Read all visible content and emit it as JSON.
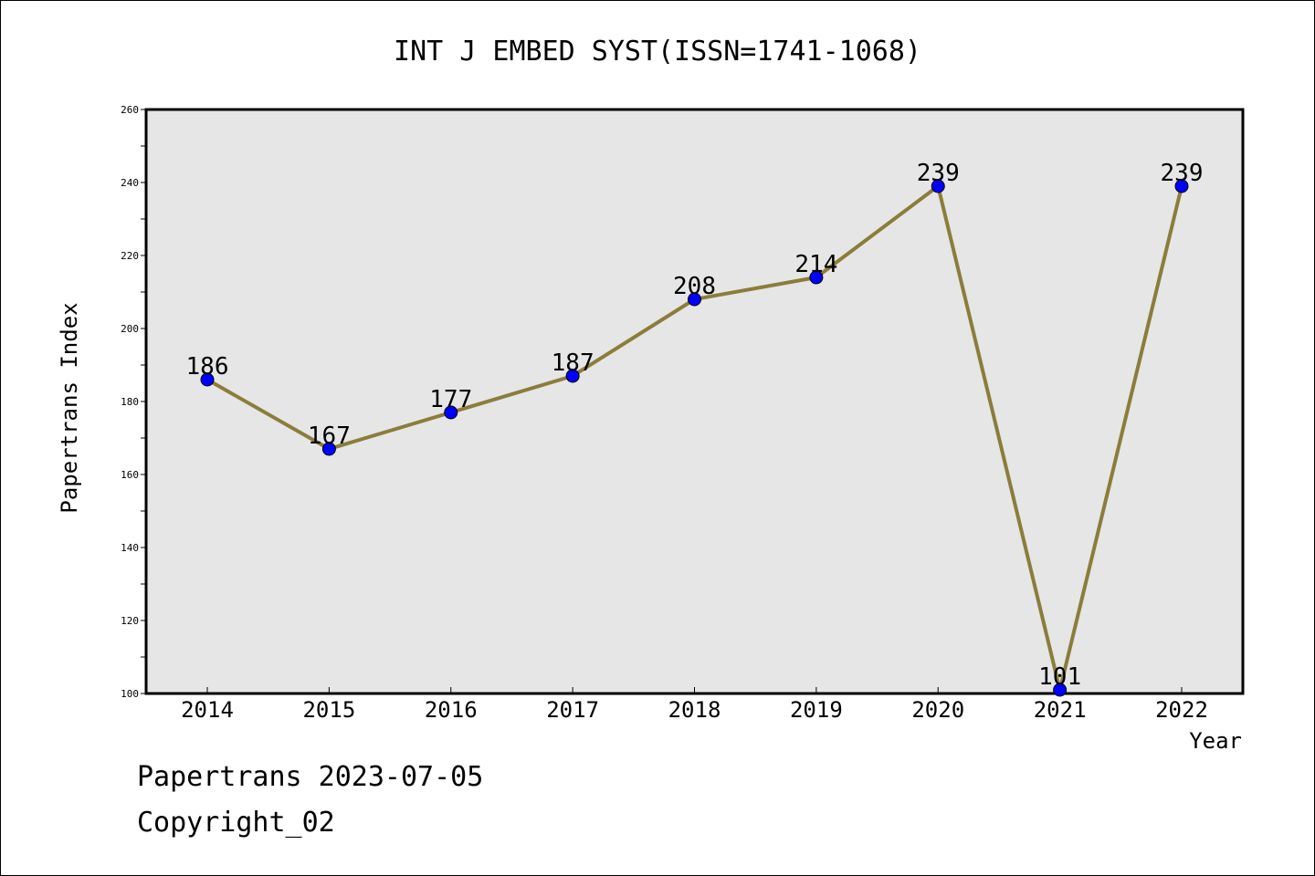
{
  "chart_data": {
    "type": "line",
    "title": "INT J EMBED SYST(ISSN=1741-1068)",
    "xlabel": "Year",
    "ylabel": "Papertrans Index",
    "categories": [
      "2014",
      "2015",
      "2016",
      "2017",
      "2018",
      "2019",
      "2020",
      "2021",
      "2022"
    ],
    "series": [
      {
        "values": [
          186,
          167,
          177,
          187,
          208,
          214,
          239,
          101,
          239
        ]
      }
    ],
    "ylim": [
      100,
      260
    ],
    "yticks": [
      100,
      120,
      140,
      160,
      180,
      200,
      220,
      240,
      260
    ],
    "grid": false,
    "data_labels": true,
    "colors": {
      "line": "#8B7D3A",
      "marker": "#0000FF",
      "plot_background": "#E6E6E6"
    }
  },
  "footer": {
    "line1": "Papertrans 2023-07-05",
    "line2": "Copyright_02"
  }
}
